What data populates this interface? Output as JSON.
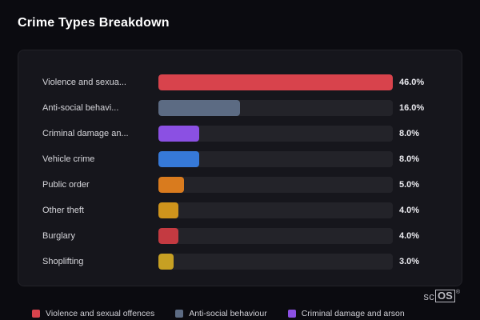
{
  "title": "Crime Types Breakdown",
  "chart_data": {
    "type": "bar",
    "orientation": "horizontal",
    "title": "Crime Types Breakdown",
    "xlabel": "",
    "ylabel": "",
    "max_value": 46.0,
    "categories": [
      "Violence and sexua...",
      "Anti-social behavi...",
      "Criminal damage an...",
      "Vehicle crime",
      "Public order",
      "Other theft",
      "Burglary",
      "Shoplifting"
    ],
    "values": [
      46.0,
      16.0,
      8.0,
      8.0,
      5.0,
      4.0,
      4.0,
      3.0
    ],
    "value_labels": [
      "46.0%",
      "16.0%",
      "8.0%",
      "8.0%",
      "5.0%",
      "4.0%",
      "4.0%",
      "3.0%"
    ],
    "bar_colors": [
      "#d8434c",
      "#5c6b83",
      "#8b50e3",
      "#3679d8",
      "#d97b1e",
      "#cf941c",
      "#c43a41",
      "#c7a023"
    ],
    "track_color": "#232329",
    "legend_position": "bottom"
  },
  "legend": [
    {
      "label": "Violence and sexual offences",
      "color": "#d8434c"
    },
    {
      "label": "Anti-social behaviour",
      "color": "#5c6b83"
    },
    {
      "label": "Criminal damage and arson",
      "color": "#8b50e3"
    }
  ],
  "branding": {
    "prefix": "sc",
    "box": "OS",
    "registered": "®"
  },
  "colors": {
    "background": "#0b0b10",
    "card": "#16161c",
    "accent_red": "#d8434c"
  }
}
